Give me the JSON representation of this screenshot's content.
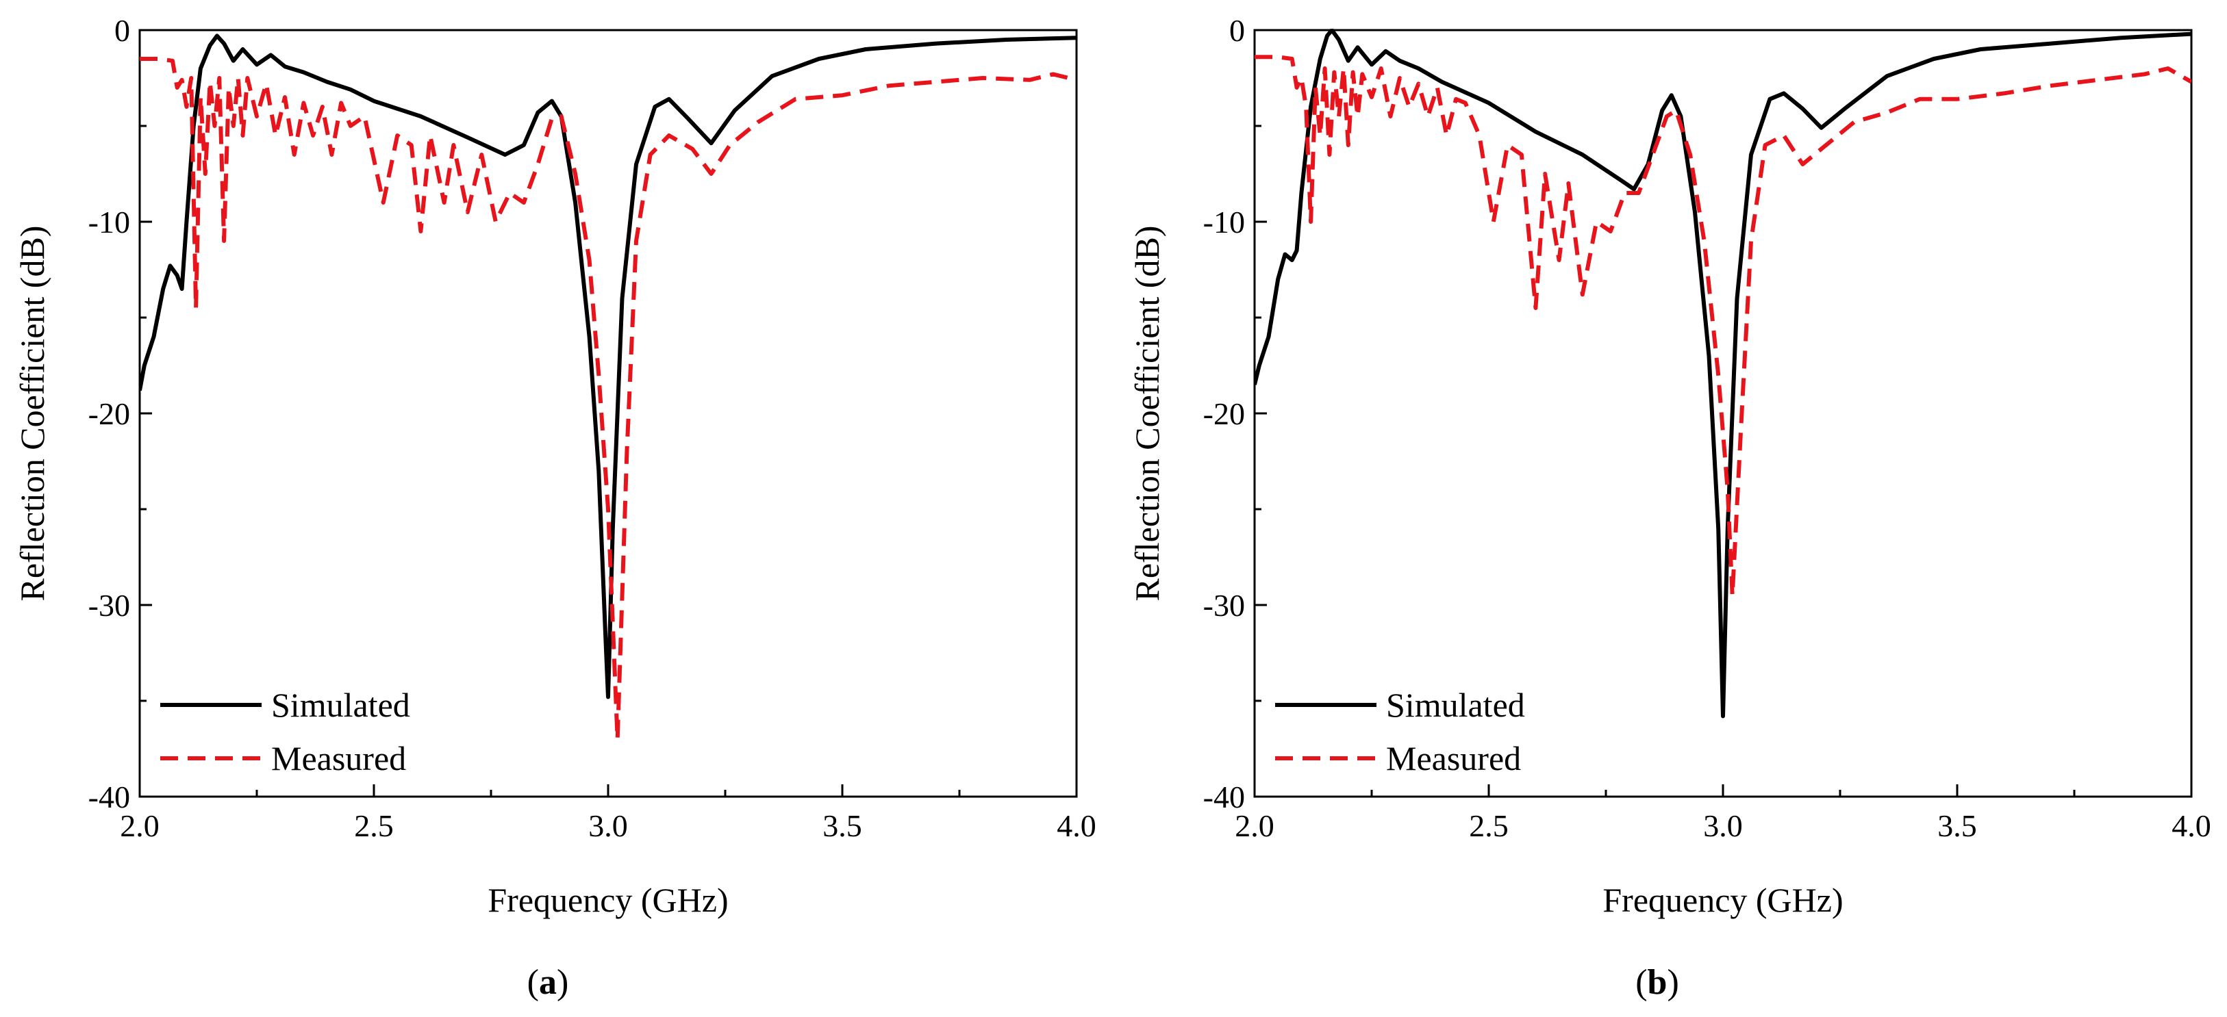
{
  "figure": {
    "panel_labels": [
      "(a)",
      "(b)"
    ],
    "panel_letters": [
      "a",
      "b"
    ]
  },
  "colors": {
    "simulated": "#000000",
    "measured": "#e8141c",
    "axis": "#000000"
  },
  "chart_data": [
    {
      "type": "line",
      "panel": "a",
      "xlabel": "Frequency (GHz)",
      "ylabel": "Reflection Coefficient (dB)",
      "xlim": [
        2.0,
        4.0
      ],
      "ylim": [
        -40,
        0
      ],
      "xticks": [
        2.0,
        2.5,
        3.0,
        3.5,
        4.0
      ],
      "xtick_labels": [
        "2.0",
        "2.5",
        "3.0",
        "3.5",
        "4.0"
      ],
      "yticks": [
        0,
        -10,
        -20,
        -30,
        -40
      ],
      "ytick_labels": [
        "0",
        "-10",
        "-20",
        "-30",
        "-40"
      ],
      "legend": "bottom-left",
      "series": [
        {
          "name": "Simulated",
          "style": "solid",
          "points": [
            [
              2.0,
              -18.8
            ],
            [
              2.01,
              -17.5
            ],
            [
              2.03,
              -16.0
            ],
            [
              2.05,
              -13.5
            ],
            [
              2.065,
              -12.3
            ],
            [
              2.08,
              -12.8
            ],
            [
              2.09,
              -13.5
            ],
            [
              2.1,
              -10.0
            ],
            [
              2.115,
              -5.0
            ],
            [
              2.13,
              -2.0
            ],
            [
              2.15,
              -0.8
            ],
            [
              2.165,
              -0.3
            ],
            [
              2.18,
              -0.7
            ],
            [
              2.2,
              -1.6
            ],
            [
              2.22,
              -1.0
            ],
            [
              2.25,
              -1.8
            ],
            [
              2.28,
              -1.3
            ],
            [
              2.31,
              -1.9
            ],
            [
              2.35,
              -2.2
            ],
            [
              2.4,
              -2.7
            ],
            [
              2.45,
              -3.1
            ],
            [
              2.5,
              -3.7
            ],
            [
              2.6,
              -4.5
            ],
            [
              2.7,
              -5.6
            ],
            [
              2.78,
              -6.5
            ],
            [
              2.82,
              -6.0
            ],
            [
              2.85,
              -4.3
            ],
            [
              2.88,
              -3.7
            ],
            [
              2.9,
              -4.5
            ],
            [
              2.93,
              -9.0
            ],
            [
              2.96,
              -16.0
            ],
            [
              2.98,
              -23.0
            ],
            [
              2.995,
              -32.0
            ],
            [
              3.0,
              -34.8
            ],
            [
              3.01,
              -26.0
            ],
            [
              3.03,
              -14.0
            ],
            [
              3.06,
              -7.0
            ],
            [
              3.1,
              -4.0
            ],
            [
              3.13,
              -3.6
            ],
            [
              3.17,
              -4.6
            ],
            [
              3.22,
              -5.9
            ],
            [
              3.27,
              -4.2
            ],
            [
              3.35,
              -2.4
            ],
            [
              3.45,
              -1.5
            ],
            [
              3.55,
              -1.0
            ],
            [
              3.7,
              -0.7
            ],
            [
              3.85,
              -0.5
            ],
            [
              4.0,
              -0.4
            ]
          ]
        },
        {
          "name": "Measured",
          "style": "dashed",
          "points": [
            [
              2.0,
              -1.5
            ],
            [
              2.04,
              -1.5
            ],
            [
              2.07,
              -1.6
            ],
            [
              2.08,
              -3.0
            ],
            [
              2.09,
              -2.6
            ],
            [
              2.1,
              -4.0
            ],
            [
              2.11,
              -2.5
            ],
            [
              2.12,
              -14.5
            ],
            [
              2.13,
              -3.5
            ],
            [
              2.14,
              -7.5
            ],
            [
              2.15,
              -2.7
            ],
            [
              2.16,
              -5.0
            ],
            [
              2.17,
              -2.5
            ],
            [
              2.18,
              -11.0
            ],
            [
              2.19,
              -3.0
            ],
            [
              2.2,
              -5.0
            ],
            [
              2.21,
              -2.5
            ],
            [
              2.22,
              -5.5
            ],
            [
              2.23,
              -2.5
            ],
            [
              2.25,
              -4.5
            ],
            [
              2.27,
              -2.8
            ],
            [
              2.29,
              -5.5
            ],
            [
              2.31,
              -3.5
            ],
            [
              2.33,
              -6.5
            ],
            [
              2.35,
              -3.8
            ],
            [
              2.37,
              -5.5
            ],
            [
              2.39,
              -4.0
            ],
            [
              2.41,
              -6.5
            ],
            [
              2.43,
              -3.8
            ],
            [
              2.45,
              -5.0
            ],
            [
              2.48,
              -4.5
            ],
            [
              2.52,
              -9.0
            ],
            [
              2.55,
              -5.5
            ],
            [
              2.58,
              -6.0
            ],
            [
              2.6,
              -10.5
            ],
            [
              2.62,
              -5.5
            ],
            [
              2.65,
              -9.0
            ],
            [
              2.67,
              -6.0
            ],
            [
              2.7,
              -9.5
            ],
            [
              2.73,
              -6.5
            ],
            [
              2.76,
              -10.0
            ],
            [
              2.79,
              -8.5
            ],
            [
              2.82,
              -9.0
            ],
            [
              2.85,
              -7.0
            ],
            [
              2.88,
              -4.6
            ],
            [
              2.9,
              -4.5
            ],
            [
              2.93,
              -7.5
            ],
            [
              2.96,
              -12.0
            ],
            [
              2.98,
              -18.0
            ],
            [
              3.0,
              -25.0
            ],
            [
              3.02,
              -37.0
            ],
            [
              3.04,
              -22.0
            ],
            [
              3.06,
              -11.0
            ],
            [
              3.09,
              -6.5
            ],
            [
              3.13,
              -5.5
            ],
            [
              3.18,
              -6.2
            ],
            [
              3.22,
              -7.5
            ],
            [
              3.26,
              -6.0
            ],
            [
              3.32,
              -4.8
            ],
            [
              3.4,
              -3.6
            ],
            [
              3.5,
              -3.4
            ],
            [
              3.6,
              -2.9
            ],
            [
              3.7,
              -2.7
            ],
            [
              3.8,
              -2.5
            ],
            [
              3.9,
              -2.6
            ],
            [
              3.95,
              -2.3
            ],
            [
              4.0,
              -2.6
            ]
          ]
        }
      ]
    },
    {
      "type": "line",
      "panel": "b",
      "xlabel": "Frequency (GHz)",
      "ylabel": "Reflection Coefficient (dB)",
      "xlim": [
        2.0,
        4.0
      ],
      "ylim": [
        -40,
        0
      ],
      "xticks": [
        2.0,
        2.5,
        3.0,
        3.5,
        4.0
      ],
      "xtick_labels": [
        "2.0",
        "2.5",
        "3.0",
        "3.5",
        "4.0"
      ],
      "yticks": [
        0,
        -10,
        -20,
        -30,
        -40
      ],
      "ytick_labels": [
        "0",
        "-10",
        "-20",
        "-30",
        "-40"
      ],
      "legend": "bottom-left",
      "series": [
        {
          "name": "Simulated",
          "style": "solid",
          "points": [
            [
              2.0,
              -18.5
            ],
            [
              2.01,
              -17.5
            ],
            [
              2.03,
              -16.0
            ],
            [
              2.05,
              -13.0
            ],
            [
              2.065,
              -11.7
            ],
            [
              2.08,
              -12.0
            ],
            [
              2.09,
              -11.5
            ],
            [
              2.1,
              -8.5
            ],
            [
              2.12,
              -4.0
            ],
            [
              2.14,
              -1.5
            ],
            [
              2.155,
              -0.3
            ],
            [
              2.165,
              0.0
            ],
            [
              2.18,
              -0.5
            ],
            [
              2.2,
              -1.6
            ],
            [
              2.22,
              -0.9
            ],
            [
              2.25,
              -1.8
            ],
            [
              2.28,
              -1.1
            ],
            [
              2.31,
              -1.6
            ],
            [
              2.35,
              -2.0
            ],
            [
              2.4,
              -2.7
            ],
            [
              2.5,
              -3.8
            ],
            [
              2.6,
              -5.3
            ],
            [
              2.7,
              -6.5
            ],
            [
              2.78,
              -7.8
            ],
            [
              2.81,
              -8.3
            ],
            [
              2.84,
              -7.0
            ],
            [
              2.87,
              -4.2
            ],
            [
              2.89,
              -3.4
            ],
            [
              2.91,
              -4.5
            ],
            [
              2.94,
              -9.5
            ],
            [
              2.97,
              -17.0
            ],
            [
              2.99,
              -26.0
            ],
            [
              3.0,
              -35.8
            ],
            [
              3.01,
              -26.0
            ],
            [
              3.03,
              -14.0
            ],
            [
              3.06,
              -6.5
            ],
            [
              3.1,
              -3.6
            ],
            [
              3.13,
              -3.3
            ],
            [
              3.17,
              -4.1
            ],
            [
              3.21,
              -5.1
            ],
            [
              3.26,
              -4.1
            ],
            [
              3.35,
              -2.4
            ],
            [
              3.45,
              -1.5
            ],
            [
              3.55,
              -1.0
            ],
            [
              3.7,
              -0.7
            ],
            [
              3.85,
              -0.4
            ],
            [
              4.0,
              -0.2
            ]
          ]
        },
        {
          "name": "Measured",
          "style": "dashed",
          "points": [
            [
              2.0,
              -1.4
            ],
            [
              2.05,
              -1.4
            ],
            [
              2.08,
              -1.5
            ],
            [
              2.09,
              -3.0
            ],
            [
              2.1,
              -2.5
            ],
            [
              2.11,
              -4.0
            ],
            [
              2.12,
              -10.0
            ],
            [
              2.13,
              -3.0
            ],
            [
              2.14,
              -5.5
            ],
            [
              2.15,
              -2.0
            ],
            [
              2.16,
              -6.5
            ],
            [
              2.17,
              -2.2
            ],
            [
              2.18,
              -4.5
            ],
            [
              2.19,
              -2.0
            ],
            [
              2.2,
              -6.0
            ],
            [
              2.21,
              -2.2
            ],
            [
              2.22,
              -4.5
            ],
            [
              2.23,
              -2.3
            ],
            [
              2.25,
              -3.5
            ],
            [
              2.27,
              -2.0
            ],
            [
              2.29,
              -4.5
            ],
            [
              2.31,
              -2.5
            ],
            [
              2.33,
              -4.0
            ],
            [
              2.35,
              -2.8
            ],
            [
              2.37,
              -4.5
            ],
            [
              2.39,
              -3.0
            ],
            [
              2.41,
              -5.5
            ],
            [
              2.43,
              -3.6
            ],
            [
              2.45,
              -3.8
            ],
            [
              2.48,
              -5.5
            ],
            [
              2.51,
              -10.0
            ],
            [
              2.54,
              -6.0
            ],
            [
              2.57,
              -6.5
            ],
            [
              2.6,
              -14.5
            ],
            [
              2.62,
              -7.5
            ],
            [
              2.65,
              -12.0
            ],
            [
              2.67,
              -8.0
            ],
            [
              2.7,
              -13.8
            ],
            [
              2.73,
              -10.0
            ],
            [
              2.76,
              -10.5
            ],
            [
              2.79,
              -8.5
            ],
            [
              2.82,
              -8.5
            ],
            [
              2.85,
              -6.5
            ],
            [
              2.88,
              -4.5
            ],
            [
              2.9,
              -4.2
            ],
            [
              2.93,
              -6.5
            ],
            [
              2.96,
              -11.0
            ],
            [
              2.99,
              -18.0
            ],
            [
              3.01,
              -24.0
            ],
            [
              3.02,
              -29.5
            ],
            [
              3.04,
              -20.0
            ],
            [
              3.06,
              -11.0
            ],
            [
              3.09,
              -6.0
            ],
            [
              3.13,
              -5.5
            ],
            [
              3.17,
              -7.0
            ],
            [
              3.22,
              -6.0
            ],
            [
              3.28,
              -4.8
            ],
            [
              3.35,
              -4.3
            ],
            [
              3.42,
              -3.6
            ],
            [
              3.5,
              -3.6
            ],
            [
              3.6,
              -3.3
            ],
            [
              3.7,
              -2.9
            ],
            [
              3.8,
              -2.6
            ],
            [
              3.9,
              -2.3
            ],
            [
              3.95,
              -2.0
            ],
            [
              4.0,
              -2.7
            ]
          ]
        }
      ]
    }
  ]
}
